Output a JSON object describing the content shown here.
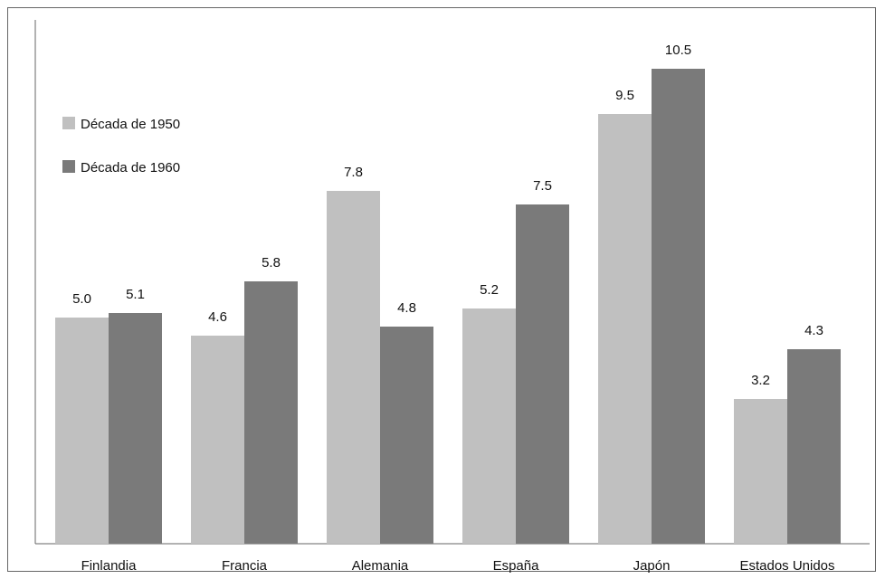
{
  "chart_data": {
    "type": "bar",
    "title": "",
    "xlabel": "",
    "ylabel": "",
    "categories": [
      "Finlandia",
      "Francia",
      "Alemania",
      "España",
      "Japón",
      "Estados Unidos"
    ],
    "series": [
      {
        "name": "Década de 1950",
        "values": [
          5.0,
          4.6,
          7.8,
          5.2,
          9.5,
          3.2
        ],
        "color": "#c0c0c0"
      },
      {
        "name": "Década de 1960",
        "values": [
          5.1,
          5.8,
          4.8,
          7.5,
          10.5,
          4.3
        ],
        "color": "#7a7a7a"
      }
    ],
    "ylim": [
      0,
      11.5
    ],
    "grid": false,
    "legend_position": "top-left",
    "value_labels": true
  }
}
